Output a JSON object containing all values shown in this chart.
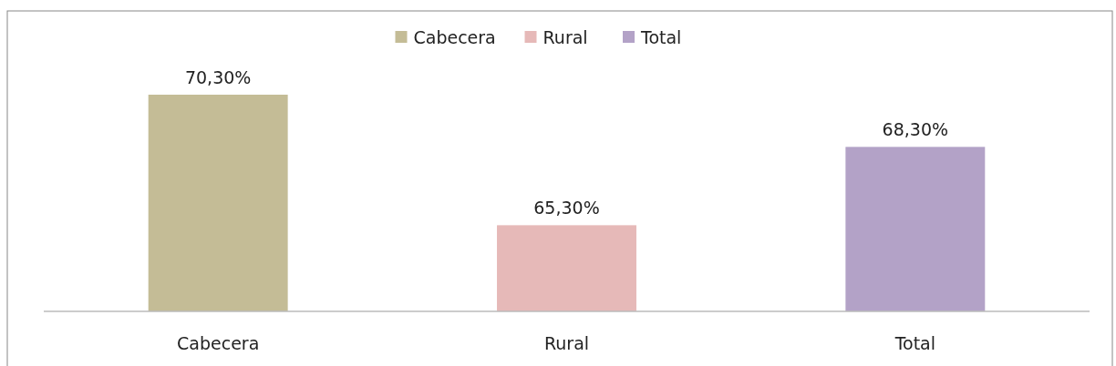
{
  "chart_data": {
    "type": "bar",
    "categories": [
      "Cabecera",
      "Rural",
      "Total"
    ],
    "series": [
      {
        "name": "Cabecera",
        "color": "#c4bc96",
        "values": [
          70.3,
          null,
          null
        ],
        "value_labels": [
          "70,30%",
          null,
          null
        ]
      },
      {
        "name": "Rural",
        "color": "#e6b9b8",
        "values": [
          null,
          65.3,
          null
        ],
        "value_labels": [
          null,
          "65,30%",
          null
        ]
      },
      {
        "name": "Total",
        "color": "#b3a2c7",
        "values": [
          null,
          null,
          68.3
        ],
        "value_labels": [
          null,
          null,
          "68,30%"
        ]
      }
    ],
    "ylim": [
      62,
      70.3
    ],
    "legend": "top"
  }
}
